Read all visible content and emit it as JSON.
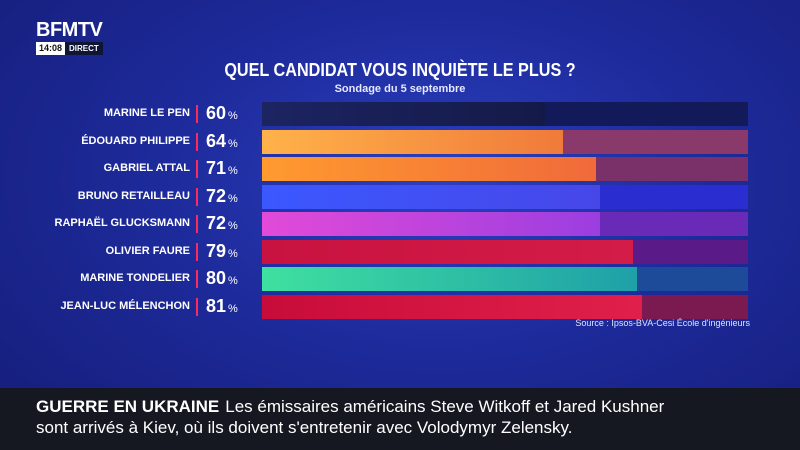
{
  "channel": {
    "logo": "BFMTV",
    "time": "14:08",
    "live_label": "DIRECT"
  },
  "colors": {
    "background": "#1d2a9a",
    "separator": "#ff2a5a",
    "ticker_bg": "#151821"
  },
  "chart_data": {
    "type": "bar",
    "orientation": "horizontal",
    "title": "QUEL CANDIDAT VOUS INQUIÈTE LE PLUS ?",
    "subtitle": "Sondage du 5 septembre",
    "unit": "%",
    "xlim": [
      0,
      100
    ],
    "categories": [
      "MARINE LE PEN",
      "ÉDOUARD PHILIPPE",
      "GABRIEL ATTAL",
      "BRUNO RETAILLEAU",
      "RAPHAËL GLUCKSMANN",
      "OLIVIER FAURE",
      "MARINE TONDELIER",
      "JEAN-LUC MÉLENCHON"
    ],
    "values": [
      60,
      64,
      71,
      72,
      72,
      79,
      80,
      81
    ],
    "bar_colors": [
      [
        "#1c2462",
        "#141a48"
      ],
      [
        "#ffb24a",
        "#f07a3a"
      ],
      [
        "#ff9a2f",
        "#f06a3a"
      ],
      [
        "#3b58ff",
        "#4747e8"
      ],
      [
        "#e24ad8",
        "#9b3ee0"
      ],
      [
        "#c8123f",
        "#d41c48"
      ],
      [
        "#3fe0a0",
        "#1fa0a8"
      ],
      [
        "#c80c3a",
        "#e0204a"
      ]
    ],
    "track_colors": [
      "#121a5a",
      "#8a3a6a",
      "#7a3068",
      "#2a2ed0",
      "#6a2ab8",
      "#5a1a88",
      "#1e4a9a",
      "#7a1a50"
    ],
    "source": "Source : Ipsos-BVA-Cesi École d'ingénieurs"
  },
  "ticker": {
    "headline": "GUERRE EN UKRAINE",
    "line1": "Les émissaires américains Steve Witkoff et Jared Kushner",
    "line2": "sont arrivés à Kiev, où ils doivent s'entretenir avec Volodymyr Zelensky."
  }
}
